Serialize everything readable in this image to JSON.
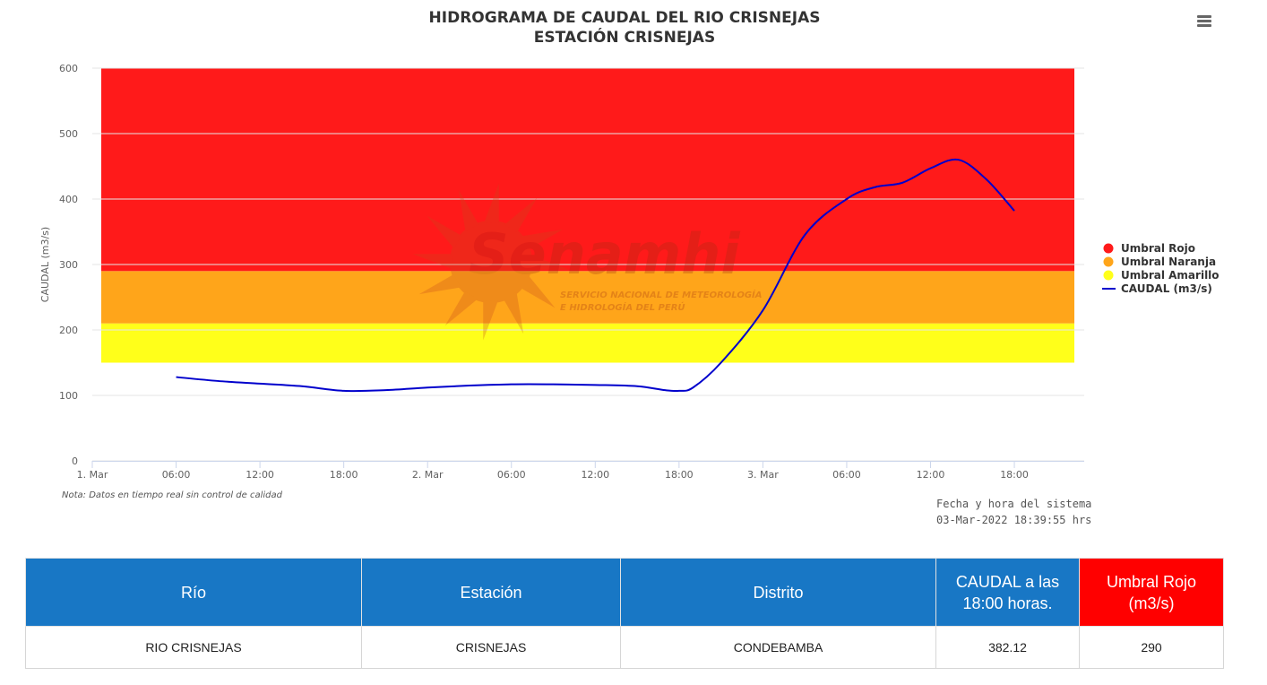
{
  "chart_data": {
    "type": "line",
    "title": "HIDROGRAMA DE CAUDAL DEL RIO CRISNEJAS",
    "subtitle": "ESTACIÓN CRISNEJAS",
    "ylabel": "CAUDAL (m3/s)",
    "xlabel": "",
    "ylim": [
      0,
      600
    ],
    "yticks": [
      0,
      100,
      200,
      300,
      400,
      500,
      600
    ],
    "xlim": [
      "2022-03-01 00:00",
      "2022-03-03 23:00"
    ],
    "xticks": [
      {
        "x": "2022-03-01 00:00",
        "label": "1. Mar"
      },
      {
        "x": "2022-03-01 06:00",
        "label": "06:00"
      },
      {
        "x": "2022-03-01 12:00",
        "label": "12:00"
      },
      {
        "x": "2022-03-01 18:00",
        "label": "18:00"
      },
      {
        "x": "2022-03-02 00:00",
        "label": "2. Mar"
      },
      {
        "x": "2022-03-02 06:00",
        "label": "06:00"
      },
      {
        "x": "2022-03-02 12:00",
        "label": "12:00"
      },
      {
        "x": "2022-03-02 18:00",
        "label": "18:00"
      },
      {
        "x": "2022-03-03 00:00",
        "label": "3. Mar"
      },
      {
        "x": "2022-03-03 06:00",
        "label": "06:00"
      },
      {
        "x": "2022-03-03 12:00",
        "label": "12:00"
      },
      {
        "x": "2022-03-03 18:00",
        "label": "18:00"
      }
    ],
    "grid": true,
    "legend_position": "right",
    "bands": [
      {
        "name": "Umbral Amarillo",
        "from": 150,
        "to": 210,
        "color": "#ffff1a"
      },
      {
        "name": "Umbral Naranja",
        "from": 210,
        "to": 290,
        "color": "#ffa51a"
      },
      {
        "name": "Umbral Rojo",
        "from": 290,
        "to": 600,
        "color": "#ff1a1a"
      }
    ],
    "legend": [
      {
        "name": "Umbral Rojo",
        "color": "#ff1a1a",
        "kind": "dot"
      },
      {
        "name": "Umbral Naranja",
        "color": "#ffa51a",
        "kind": "dot"
      },
      {
        "name": "Umbral Amarillo",
        "color": "#ffff1a",
        "kind": "dot"
      },
      {
        "name": "CAUDAL (m3/s)",
        "color": "#0000cc",
        "kind": "line"
      }
    ],
    "series": [
      {
        "name": "CAUDAL (m3/s)",
        "color": "#0000cc",
        "points": [
          {
            "x": "2022-03-01 06:00",
            "y": 128
          },
          {
            "x": "2022-03-01 09:00",
            "y": 122
          },
          {
            "x": "2022-03-01 12:00",
            "y": 118
          },
          {
            "x": "2022-03-01 15:00",
            "y": 114
          },
          {
            "x": "2022-03-01 18:00",
            "y": 107
          },
          {
            "x": "2022-03-01 21:00",
            "y": 108
          },
          {
            "x": "2022-03-02 00:00",
            "y": 112
          },
          {
            "x": "2022-03-02 03:00",
            "y": 115
          },
          {
            "x": "2022-03-02 06:00",
            "y": 117
          },
          {
            "x": "2022-03-02 09:00",
            "y": 117
          },
          {
            "x": "2022-03-02 12:00",
            "y": 116
          },
          {
            "x": "2022-03-02 15:00",
            "y": 114
          },
          {
            "x": "2022-03-02 17:00",
            "y": 108
          },
          {
            "x": "2022-03-02 18:00",
            "y": 107
          },
          {
            "x": "2022-03-02 19:00",
            "y": 112
          },
          {
            "x": "2022-03-02 21:00",
            "y": 150
          },
          {
            "x": "2022-03-03 00:00",
            "y": 230
          },
          {
            "x": "2022-03-03 03:00",
            "y": 345
          },
          {
            "x": "2022-03-03 06:00",
            "y": 400
          },
          {
            "x": "2022-03-03 08:00",
            "y": 418
          },
          {
            "x": "2022-03-03 10:00",
            "y": 425
          },
          {
            "x": "2022-03-03 12:00",
            "y": 447
          },
          {
            "x": "2022-03-03 14:00",
            "y": 460
          },
          {
            "x": "2022-03-03 16:00",
            "y": 430
          },
          {
            "x": "2022-03-03 18:00",
            "y": 382
          }
        ]
      }
    ]
  },
  "watermark": {
    "brand": "Senamhi",
    "line1": "SERVICIO NACIONAL DE METEOROLOGÍA",
    "line2": "E HIDROLOGÍA DEL PERÚ"
  },
  "note": "Nota: Datos en tiempo real sin control de calidad",
  "system_time": {
    "label": "Fecha y hora del sistema",
    "value": "03-Mar-2022 18:39:55 hrs"
  },
  "menu_icon": "hamburger-menu-icon",
  "table": {
    "headers": [
      "Río",
      "Estación",
      "Distrito",
      "CAUDAL a las 18:00 horas.",
      "Umbral Rojo (m3/s)"
    ],
    "header_colors": [
      "#1877c5",
      "#1877c5",
      "#1877c5",
      "#1877c5",
      "#ff0000"
    ],
    "rows": [
      [
        "RIO CRISNEJAS",
        "CRISNEJAS",
        "CONDEBAMBA",
        "382.12",
        "290"
      ]
    ]
  }
}
